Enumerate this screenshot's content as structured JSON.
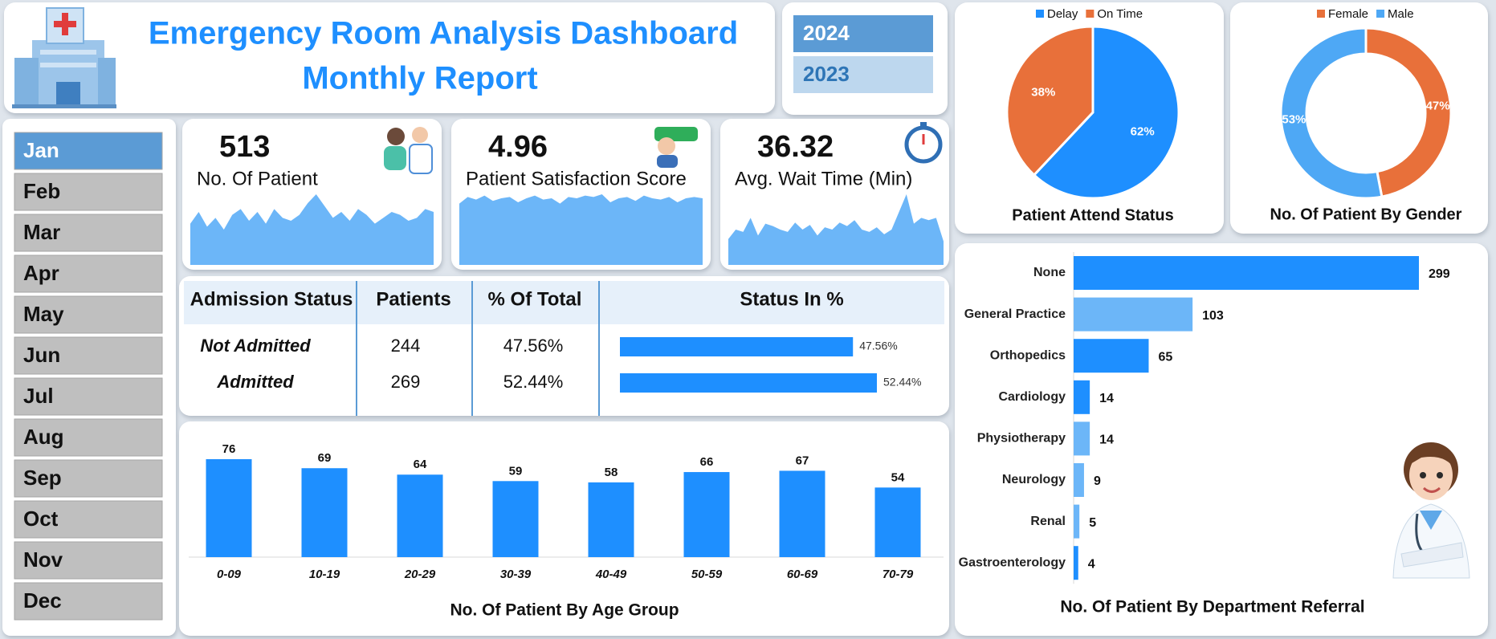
{
  "header": {
    "title": "Emergency Room Analysis Dashboard",
    "subtitle": "Monthly Report"
  },
  "years": [
    "2024",
    "2023"
  ],
  "months": [
    "Jan",
    "Feb",
    "Mar",
    "Apr",
    "May",
    "Jun",
    "Jul",
    "Aug",
    "Sep",
    "Oct",
    "Nov",
    "Dec"
  ],
  "kpis": [
    {
      "value": 513,
      "label": "No. Of Patient"
    },
    {
      "value": 4.96,
      "label": "Patient Satisfaction Score"
    },
    {
      "value": 36.32,
      "label": "Avg. Wait Time (Min)"
    }
  ],
  "table": {
    "headers": [
      "Admission Status",
      "Patients",
      "% Of Total",
      "Status In %"
    ],
    "rows": [
      [
        "Not Admitted",
        244,
        "47.56%"
      ],
      [
        "Admitted",
        269,
        "52.44%"
      ]
    ]
  },
  "chart_data": [
    {
      "type": "area",
      "color": "#6cb6f8",
      "values": [
        14,
        18,
        13,
        16,
        12,
        17,
        19,
        15,
        18,
        14,
        19,
        16,
        15,
        17,
        21,
        24,
        20,
        16,
        18,
        15,
        19,
        17,
        14,
        16,
        18,
        17,
        15,
        16,
        19,
        18
      ]
    },
    {
      "type": "area",
      "color": "#6cb6f8",
      "values": [
        4.6,
        5.1,
        4.9,
        5.2,
        4.8,
        5.0,
        5.1,
        4.7,
        5.0,
        5.2,
        4.9,
        5.0,
        4.6,
        5.1,
        5.0,
        5.2,
        5.1,
        5.3,
        4.7,
        5.0,
        5.1,
        4.8,
        5.2,
        5.0,
        4.9,
        5.1,
        4.7,
        5.0,
        5.1,
        5.0
      ]
    },
    {
      "type": "area",
      "color": "#6cb6f8",
      "values": [
        22,
        30,
        28,
        40,
        25,
        35,
        33,
        30,
        28,
        36,
        30,
        34,
        25,
        32,
        30,
        36,
        33,
        38,
        30,
        28,
        32,
        26,
        30,
        45,
        60,
        35,
        40,
        38,
        40,
        20
      ]
    },
    {
      "type": "bar",
      "orientation": "horizontal",
      "color": "#1e8fff",
      "values": [
        47.56,
        52.44
      ],
      "value_labels": [
        "47.56%",
        "52.44%"
      ]
    },
    {
      "type": "pie",
      "title": "Patient Attend Status",
      "categories": [
        "Delay",
        "On Time"
      ],
      "values": [
        62,
        38
      ],
      "value_labels": [
        "62%",
        "38%"
      ],
      "colors": [
        "#1e8fff",
        "#e8703a"
      ],
      "legend": "top"
    },
    {
      "type": "donut",
      "title": "No. Of Patient By Gender",
      "categories": [
        "Female",
        "Male"
      ],
      "values": [
        47,
        53
      ],
      "value_labels": [
        "47%",
        "53%"
      ],
      "colors": [
        "#e8703a",
        "#4ea8f5"
      ],
      "legend": "top"
    },
    {
      "type": "bar",
      "orientation": "vertical",
      "title": "No. Of Patient By Age Group",
      "categories": [
        "0-09",
        "10-19",
        "20-29",
        "30-39",
        "40-49",
        "50-59",
        "60-69",
        "70-79"
      ],
      "values": [
        76,
        69,
        64,
        59,
        58,
        66,
        67,
        54
      ],
      "color": "#1e8fff"
    },
    {
      "type": "bar",
      "orientation": "horizontal",
      "title": "No. Of Patient By Department Referral",
      "categories": [
        "None",
        "General Practice",
        "Orthopedics",
        "Cardiology",
        "Physiotherapy",
        "Neurology",
        "Renal",
        "Gastroenterology"
      ],
      "values": [
        299,
        103,
        65,
        14,
        14,
        9,
        5,
        4
      ],
      "colors": [
        "#1e8fff",
        "#6cb6f8",
        "#1e8fff",
        "#1e8fff",
        "#6cb6f8",
        "#6cb6f8",
        "#6cb6f8",
        "#1e8fff"
      ]
    }
  ]
}
